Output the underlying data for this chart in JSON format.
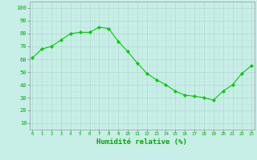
{
  "x": [
    0,
    1,
    2,
    3,
    4,
    5,
    6,
    7,
    8,
    9,
    10,
    11,
    12,
    13,
    14,
    15,
    16,
    17,
    18,
    19,
    20,
    21,
    22,
    23
  ],
  "y": [
    61,
    68,
    70,
    75,
    80,
    81,
    81,
    85,
    84,
    74,
    66,
    57,
    49,
    44,
    40,
    35,
    32,
    31,
    30,
    28,
    35,
    40,
    49,
    55
  ],
  "line_color": "#00cc00",
  "marker_color": "#00cc00",
  "bg_color": "#c8eee8",
  "grid_major_color": "#b0d8d0",
  "grid_minor_color": "#c0e4de",
  "tick_label_color": "#00aa00",
  "xlabel": "Humidité relative (%)",
  "xlabel_fontsize": 6.5,
  "ylabel_ticks": [
    10,
    20,
    30,
    40,
    50,
    60,
    70,
    80,
    90,
    100
  ],
  "ylim": [
    5,
    105
  ],
  "xlim": [
    -0.3,
    23.3
  ]
}
